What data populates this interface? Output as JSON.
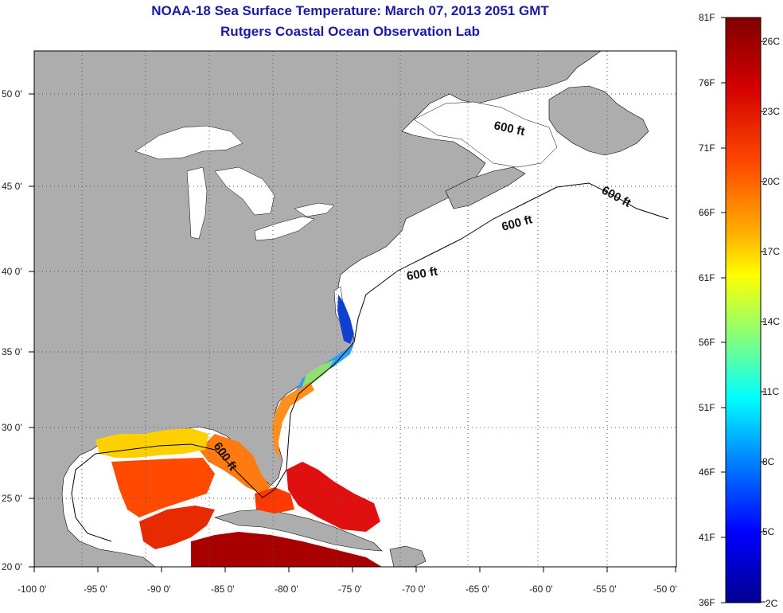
{
  "header": {
    "title_line1": "NOAA-18 Sea Surface Temperature:  March 07, 2013 2051 GMT",
    "title_line2": "Rutgers Coastal Ocean Observation Lab"
  },
  "map": {
    "lon_ticks": [
      "-100 0'",
      "-95 0'",
      "-90 0'",
      "-85 0'",
      "-80 0'",
      "-75 0'",
      "-70 0'",
      "-65 0'",
      "-60 0'",
      "-55 0'",
      "-50 0'"
    ],
    "lat_ticks": [
      "50 0'",
      "45 0'",
      "40 0'",
      "35 0'",
      "30 0'",
      "25 0'",
      "20 0'"
    ],
    "contour_labels": [
      "600 ft",
      "600 ft",
      "600 ft",
      "600 ft",
      "600 ft"
    ],
    "colors": {
      "land": "#adadad",
      "ocean": "#ffffff",
      "grid": "#555555"
    }
  },
  "colorbar": {
    "fahrenheit_labels": [
      "81F",
      "76F",
      "71F",
      "66F",
      "61F",
      "56F",
      "51F",
      "46F",
      "41F",
      "36F"
    ],
    "celsius_labels": [
      "26C",
      "23C",
      "20C",
      "17C",
      "14C",
      "11C",
      "8C",
      "5C",
      "2C"
    ],
    "colors": [
      "#7f0000",
      "#ff0000",
      "#ff8000",
      "#ffff00",
      "#80ff80",
      "#00ffff",
      "#0080ff",
      "#0000ff",
      "#00008f"
    ]
  }
}
